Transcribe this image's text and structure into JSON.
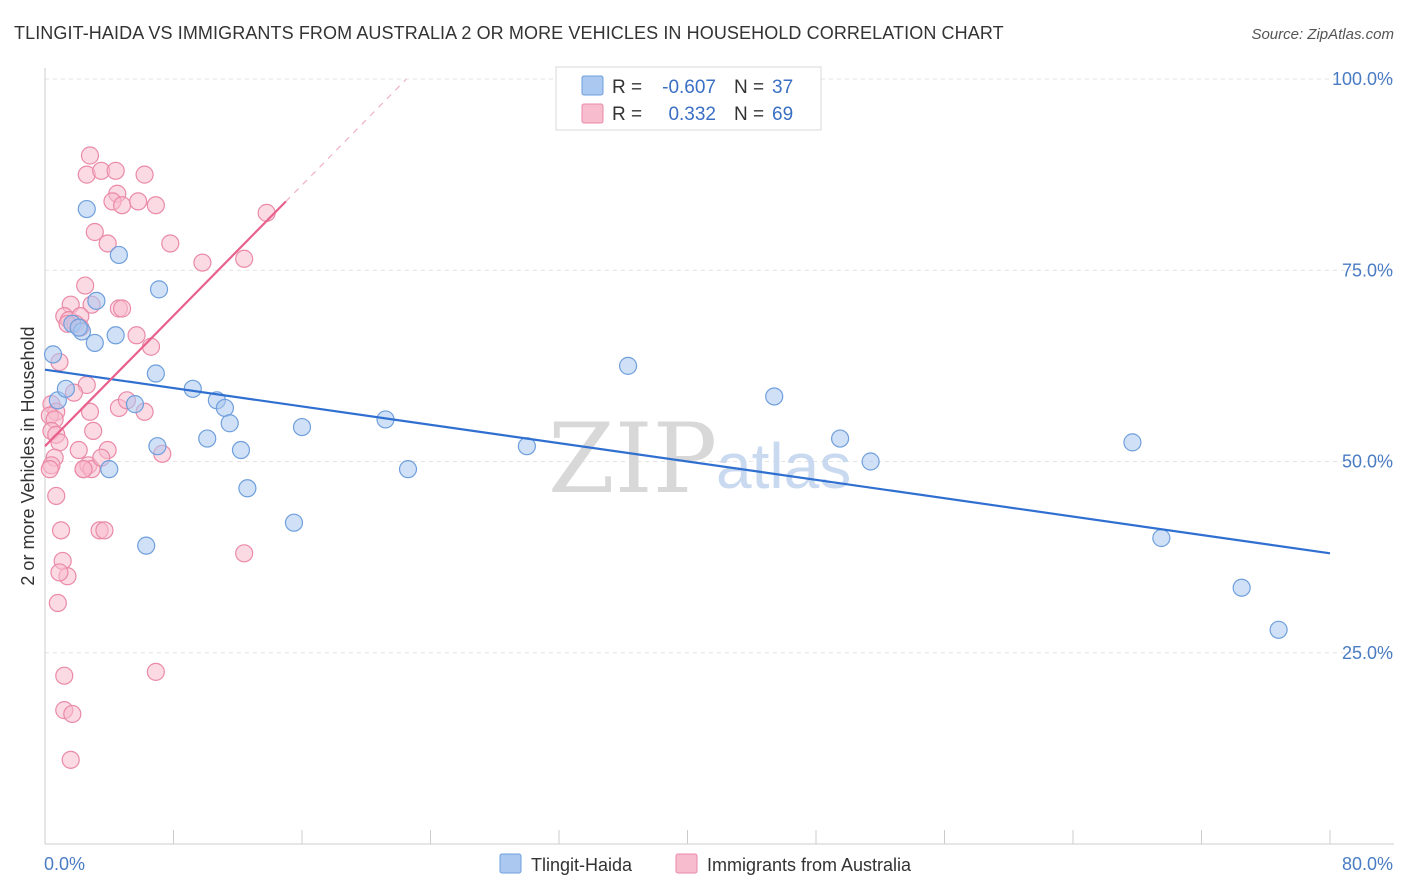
{
  "title": "TLINGIT-HAIDA VS IMMIGRANTS FROM AUSTRALIA 2 OR MORE VEHICLES IN HOUSEHOLD CORRELATION CHART",
  "source": "Source: ZipAtlas.com",
  "watermark": {
    "zip": "ZIP",
    "atlas": "atlas"
  },
  "legend": {
    "rows": [
      {
        "r_label": "R =",
        "r_value": "-0.607",
        "n_label": "N =",
        "n_value": "37"
      },
      {
        "r_label": "R =",
        "r_value": "0.332",
        "n_label": "N =",
        "n_value": "69"
      }
    ]
  },
  "bottom_legend": [
    "Tlingit-Haida",
    "Immigrants from Australia"
  ],
  "colors": {
    "blue_fill": "#aac8f0",
    "blue_stroke": "#6f9fdc",
    "blue_line": "#2f6fd0",
    "pink_fill": "#f7bccd",
    "pink_stroke": "#ea8aa8",
    "pink_line": "#e8608c",
    "grid": "#e3e3e3",
    "axis_text": "#4a7cc4"
  },
  "chart_data": {
    "type": "scatter",
    "title": "TLINGIT-HAIDA VS IMMIGRANTS FROM AUSTRALIA 2 OR MORE VEHICLES IN HOUSEHOLD CORRELATION CHART",
    "xlabel": "",
    "ylabel": "2 or more Vehicles in Household",
    "xlim": [
      0,
      80
    ],
    "ylim": [
      0,
      100
    ],
    "x_tick_labels": [
      "0.0%",
      "80.0%"
    ],
    "y_tick_values": [
      25,
      50,
      75,
      100
    ],
    "y_tick_labels": [
      "25.0%",
      "50.0%",
      "75.0%",
      "100.0%"
    ],
    "grid": true,
    "series": [
      {
        "name": "Tlingit-Haida",
        "color": "blue",
        "R": -0.607,
        "N": 37,
        "trend": {
          "x": [
            0,
            80
          ],
          "y": [
            62.0,
            38.0
          ]
        },
        "points": [
          [
            0.5,
            64.0
          ],
          [
            0.8,
            58.0
          ],
          [
            1.3,
            59.5
          ],
          [
            1.7,
            68.0
          ],
          [
            2.3,
            67.0
          ],
          [
            3.2,
            71.0
          ],
          [
            2.6,
            83.0
          ],
          [
            4.6,
            77.0
          ],
          [
            3.1,
            65.5
          ],
          [
            4.4,
            66.5
          ],
          [
            7.1,
            72.5
          ],
          [
            5.6,
            57.5
          ],
          [
            6.9,
            61.5
          ],
          [
            9.2,
            59.5
          ],
          [
            10.7,
            58.0
          ],
          [
            11.2,
            57.0
          ],
          [
            11.5,
            55.0
          ],
          [
            10.1,
            53.0
          ],
          [
            12.2,
            51.5
          ],
          [
            7.0,
            52.0
          ],
          [
            4.0,
            49.0
          ],
          [
            6.3,
            39.0
          ],
          [
            12.6,
            46.5
          ],
          [
            15.5,
            42.0
          ],
          [
            16.0,
            54.5
          ],
          [
            21.2,
            55.5
          ],
          [
            22.6,
            49.0
          ],
          [
            30.0,
            52.0
          ],
          [
            36.3,
            62.5
          ],
          [
            45.4,
            58.5
          ],
          [
            49.5,
            53.0
          ],
          [
            51.4,
            50.0
          ],
          [
            67.7,
            52.5
          ],
          [
            69.5,
            40.0
          ],
          [
            74.5,
            33.5
          ],
          [
            76.8,
            28.0
          ],
          [
            2.1,
            67.5
          ]
        ]
      },
      {
        "name": "Immigrants from Australia",
        "color": "pink",
        "R": 0.332,
        "N": 69,
        "trend": {
          "x": [
            0,
            15
          ],
          "y": [
            52.0,
            84.0
          ]
        },
        "trend_dashed": {
          "x": [
            15,
            22.5
          ],
          "y": [
            84.0,
            100.0
          ]
        },
        "points": [
          [
            2.8,
            90.0
          ],
          [
            2.6,
            87.5
          ],
          [
            3.5,
            88.0
          ],
          [
            4.4,
            88.0
          ],
          [
            6.2,
            87.5
          ],
          [
            4.5,
            85.0
          ],
          [
            4.2,
            84.0
          ],
          [
            4.8,
            83.5
          ],
          [
            5.8,
            84.0
          ],
          [
            6.9,
            83.5
          ],
          [
            13.8,
            82.5
          ],
          [
            3.1,
            80.0
          ],
          [
            3.9,
            78.5
          ],
          [
            7.8,
            78.5
          ],
          [
            9.8,
            76.0
          ],
          [
            12.4,
            76.5
          ],
          [
            2.5,
            73.0
          ],
          [
            1.6,
            70.5
          ],
          [
            2.9,
            70.5
          ],
          [
            1.2,
            69.0
          ],
          [
            1.5,
            68.5
          ],
          [
            2.2,
            69.0
          ],
          [
            4.6,
            70.0
          ],
          [
            1.9,
            68.0
          ],
          [
            2.2,
            67.5
          ],
          [
            1.4,
            68.0
          ],
          [
            5.7,
            66.5
          ],
          [
            6.6,
            65.0
          ],
          [
            0.9,
            63.0
          ],
          [
            2.6,
            60.0
          ],
          [
            1.8,
            59.0
          ],
          [
            0.4,
            57.5
          ],
          [
            0.7,
            56.5
          ],
          [
            0.3,
            56.0
          ],
          [
            0.6,
            55.5
          ],
          [
            2.8,
            56.5
          ],
          [
            4.6,
            57.0
          ],
          [
            5.1,
            58.0
          ],
          [
            6.2,
            56.5
          ],
          [
            0.4,
            54.0
          ],
          [
            0.7,
            53.5
          ],
          [
            3.0,
            54.0
          ],
          [
            0.9,
            52.5
          ],
          [
            2.1,
            51.5
          ],
          [
            3.9,
            51.5
          ],
          [
            7.3,
            51.0
          ],
          [
            0.6,
            50.5
          ],
          [
            0.4,
            49.5
          ],
          [
            0.3,
            49.0
          ],
          [
            2.4,
            49.0
          ],
          [
            2.7,
            49.5
          ],
          [
            2.9,
            49.0
          ],
          [
            3.5,
            50.5
          ],
          [
            0.7,
            45.5
          ],
          [
            1.0,
            41.0
          ],
          [
            3.4,
            41.0
          ],
          [
            3.7,
            41.0
          ],
          [
            12.4,
            38.0
          ],
          [
            1.1,
            37.0
          ],
          [
            1.4,
            35.0
          ],
          [
            0.9,
            35.5
          ],
          [
            0.8,
            31.5
          ],
          [
            6.9,
            22.5
          ],
          [
            1.2,
            22.0
          ],
          [
            1.2,
            17.5
          ],
          [
            1.7,
            17.0
          ],
          [
            1.6,
            11.0
          ],
          [
            2.4,
            49.0
          ],
          [
            4.8,
            70.0
          ]
        ]
      }
    ]
  }
}
